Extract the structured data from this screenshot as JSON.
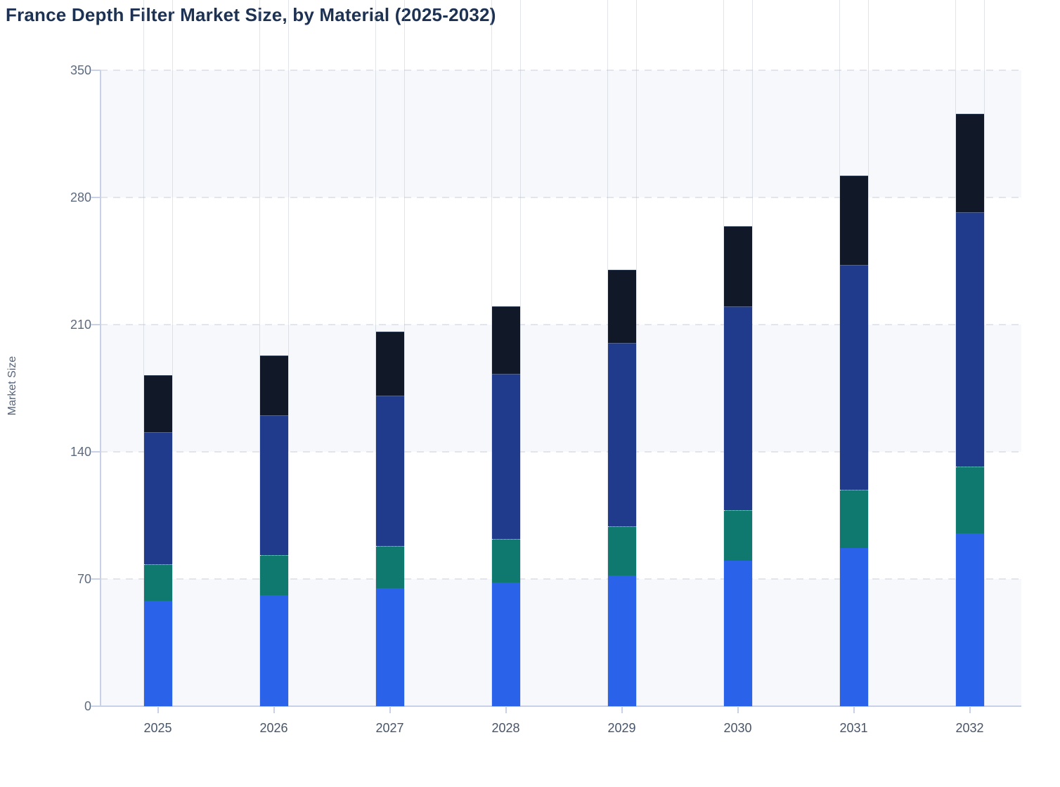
{
  "title": "France Depth Filter Market Size, by Material (2025-2032)",
  "y_axis": {
    "label": "Market Size",
    "ticks": [
      "0",
      "70",
      "140",
      "210",
      "280",
      "350"
    ],
    "min": 0,
    "max": 350
  },
  "x_axis": {
    "labels": [
      "2025",
      "2026",
      "2027",
      "2028",
      "2029",
      "2030",
      "2031",
      "2032"
    ]
  },
  "colors": {
    "title_text": "#1d3252",
    "axis_line": "#c9d1e9",
    "y_tick_text": "#5c6b80",
    "x_tick_text": "#475569",
    "gridline": "#e2e5eb",
    "plot_band": "#f7f8fb",
    "segment_blue": "#2a62e9",
    "segment_teal": "#0f786f",
    "segment_navy": "#203b8c",
    "segment_dark": "#111827"
  },
  "chart_data": {
    "type": "bar",
    "stacked": true,
    "title": "France Depth Filter Market Size, by Material (2025-2032)",
    "xlabel": "",
    "ylabel": "Market Size",
    "categories": [
      "2025",
      "2026",
      "2027",
      "2028",
      "2029",
      "2030",
      "2031",
      "2032"
    ],
    "series": [
      {
        "name": "blue-bottom-segment",
        "color": "#2a62e9",
        "values": [
          58,
          61,
          65,
          68,
          72,
          80,
          87,
          95
        ]
      },
      {
        "name": "teal-segment",
        "color": "#0f786f",
        "values": [
          20,
          22,
          23,
          24,
          27,
          28,
          32,
          37
        ]
      },
      {
        "name": "navy-segment",
        "color": "#203b8c",
        "values": [
          73,
          77,
          83,
          91,
          101,
          112,
          124,
          140
        ]
      },
      {
        "name": "dark-top-segment",
        "color": "#111827",
        "values": [
          31,
          33,
          35,
          37,
          40,
          44,
          49,
          54
        ]
      }
    ],
    "stack_order": "bottom-to-top",
    "totals": [
      182,
      193,
      206,
      220,
      240,
      264,
      292,
      326
    ],
    "yticks": [
      0,
      70,
      140,
      210,
      280,
      350
    ],
    "ylim": [
      0,
      350
    ],
    "grid": "horizontal-dashed",
    "plot_bands": [
      [
        0,
        70
      ],
      [
        140,
        210
      ],
      [
        280,
        350
      ]
    ],
    "legend": "none"
  }
}
